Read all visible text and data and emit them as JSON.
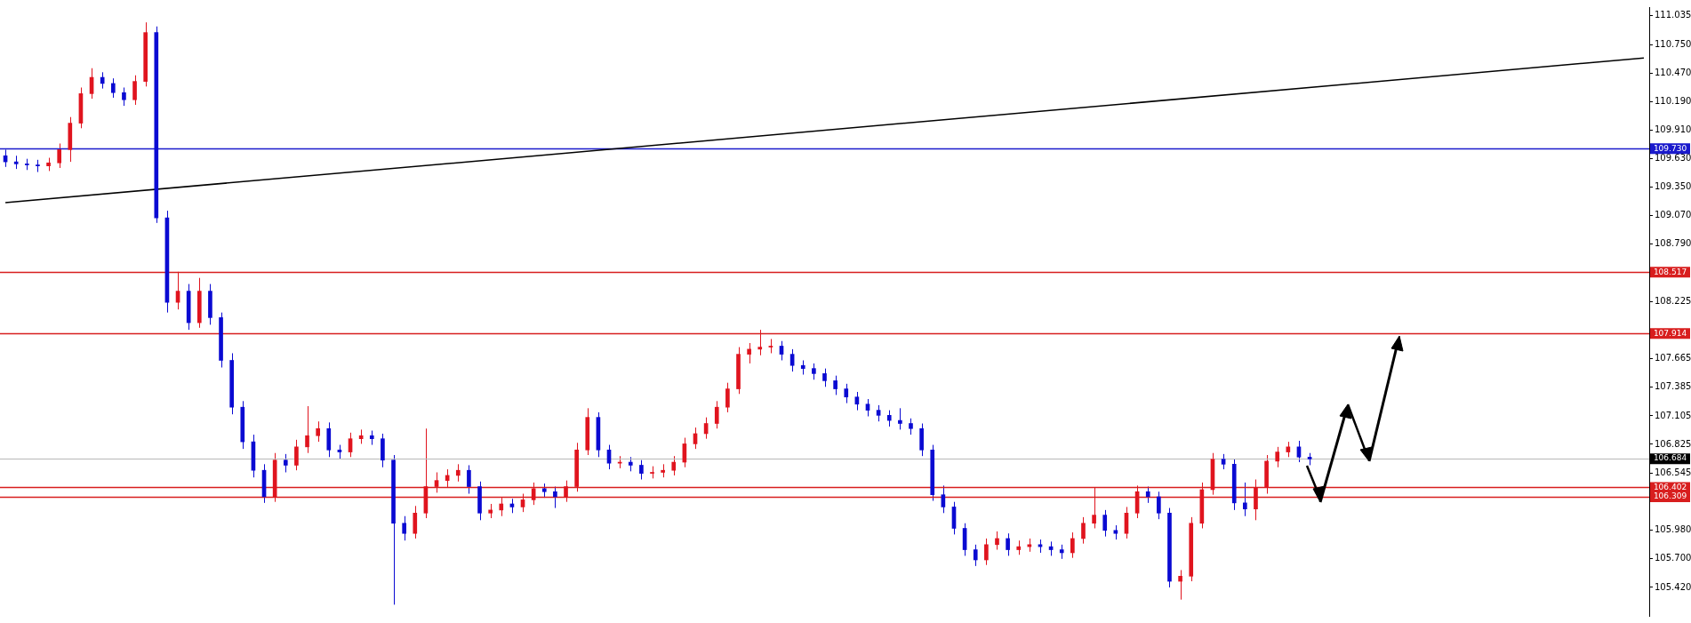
{
  "chart_data": {
    "type": "candlestick",
    "categories": [
      null,
      null,
      null,
      null,
      null,
      null,
      null,
      null,
      null,
      null,
      null,
      null,
      null,
      null,
      null,
      null,
      null,
      null,
      null,
      null,
      null,
      null,
      null,
      null,
      null,
      null,
      null,
      null,
      null,
      null,
      null,
      null,
      null,
      null,
      null,
      null,
      null,
      null,
      null,
      null,
      null,
      null,
      null,
      null,
      null,
      null,
      null,
      null,
      null,
      null,
      null,
      null,
      null,
      null,
      null,
      null,
      null,
      null,
      null,
      null,
      null,
      null,
      null,
      null,
      null,
      null,
      null,
      null,
      null,
      null,
      null,
      null,
      null,
      null,
      null,
      null,
      null,
      null,
      null,
      null,
      null,
      null,
      null,
      null,
      null,
      null,
      null,
      null,
      null,
      null,
      null,
      null,
      null,
      null,
      null,
      null,
      null,
      null,
      null,
      null,
      null,
      null,
      null,
      null,
      null,
      null,
      null,
      null,
      null,
      null,
      null,
      null,
      null,
      null,
      null,
      null,
      null,
      null,
      null,
      null,
      null,
      null,
      null,
      null,
      null,
      null,
      null,
      null,
      null,
      null,
      null,
      null,
      null,
      null,
      null,
      null,
      null,
      null,
      null,
      null,
      null,
      null,
      null,
      null,
      null,
      null,
      null,
      null,
      null,
      null,
      null,
      null,
      null
    ],
    "series": [
      {
        "type": "candlestick",
        "ohlc": [
          [
            109.66,
            109.72,
            109.55,
            109.6
          ],
          [
            109.6,
            109.66,
            109.53,
            109.58
          ],
          [
            109.58,
            109.63,
            109.52,
            109.57
          ],
          [
            109.57,
            109.62,
            109.5,
            109.56
          ],
          [
            109.56,
            109.64,
            109.51,
            109.59
          ],
          [
            109.59,
            109.78,
            109.54,
            109.72
          ],
          [
            109.72,
            110.04,
            109.6,
            109.98
          ],
          [
            109.98,
            110.33,
            109.93,
            110.27
          ],
          [
            110.27,
            110.52,
            110.22,
            110.43
          ],
          [
            110.43,
            110.48,
            110.32,
            110.37
          ],
          [
            110.37,
            110.42,
            110.23,
            110.28
          ],
          [
            110.28,
            110.33,
            110.15,
            110.21
          ],
          [
            110.21,
            110.45,
            110.16,
            110.39
          ],
          [
            110.39,
            110.97,
            110.34,
            110.87
          ],
          [
            110.87,
            110.93,
            109.0,
            109.05
          ],
          [
            109.05,
            109.12,
            108.12,
            108.22
          ],
          [
            108.22,
            108.52,
            108.15,
            108.33
          ],
          [
            108.33,
            108.4,
            107.95,
            108.02
          ],
          [
            108.02,
            108.46,
            107.97,
            108.33
          ],
          [
            108.33,
            108.4,
            108.0,
            108.07
          ],
          [
            108.07,
            108.12,
            107.58,
            107.65
          ],
          [
            107.65,
            107.72,
            107.12,
            107.19
          ],
          [
            107.19,
            107.25,
            106.78,
            106.85
          ],
          [
            106.85,
            106.92,
            106.5,
            106.57
          ],
          [
            106.57,
            106.63,
            106.25,
            106.31
          ],
          [
            106.31,
            106.74,
            106.26,
            106.67
          ],
          [
            106.67,
            106.73,
            106.55,
            106.62
          ],
          [
            106.62,
            106.87,
            106.57,
            106.8
          ],
          [
            106.8,
            107.2,
            106.74,
            106.91
          ],
          [
            106.91,
            107.05,
            106.85,
            106.98
          ],
          [
            106.98,
            107.04,
            106.7,
            106.77
          ],
          [
            106.77,
            106.82,
            106.68,
            106.75
          ],
          [
            106.75,
            106.94,
            106.7,
            106.88
          ],
          [
            106.88,
            106.97,
            106.83,
            106.91
          ],
          [
            106.91,
            106.96,
            106.82,
            106.88
          ],
          [
            106.88,
            106.93,
            106.6,
            106.67
          ],
          [
            106.67,
            106.72,
            105.25,
            106.05
          ],
          [
            106.05,
            106.12,
            105.88,
            105.95
          ],
          [
            105.95,
            106.22,
            105.9,
            106.15
          ],
          [
            106.15,
            106.98,
            106.1,
            106.41
          ],
          [
            106.41,
            106.55,
            106.35,
            106.47
          ],
          [
            106.47,
            106.58,
            106.4,
            106.52
          ],
          [
            106.52,
            106.63,
            106.46,
            106.57
          ],
          [
            106.57,
            106.62,
            106.34,
            106.41
          ],
          [
            106.41,
            106.46,
            106.08,
            106.15
          ],
          [
            106.15,
            106.24,
            106.1,
            106.18
          ],
          [
            106.18,
            106.3,
            106.12,
            106.24
          ],
          [
            106.24,
            106.29,
            106.15,
            106.21
          ],
          [
            106.21,
            106.34,
            106.16,
            106.28
          ],
          [
            106.28,
            106.45,
            106.23,
            106.39
          ],
          [
            106.39,
            106.44,
            106.3,
            106.36
          ],
          [
            106.36,
            106.41,
            106.2,
            106.31
          ],
          [
            106.31,
            106.47,
            106.26,
            106.41
          ],
          [
            106.41,
            106.84,
            106.36,
            106.77
          ],
          [
            106.77,
            107.18,
            106.72,
            107.09
          ],
          [
            107.09,
            107.14,
            106.7,
            106.77
          ],
          [
            106.77,
            106.82,
            106.58,
            106.64
          ],
          [
            106.64,
            106.71,
            106.59,
            106.65
          ],
          [
            106.65,
            106.7,
            106.56,
            106.62
          ],
          [
            106.62,
            106.67,
            106.48,
            106.54
          ],
          [
            106.54,
            106.61,
            106.49,
            106.55
          ],
          [
            106.55,
            106.63,
            106.5,
            106.57
          ],
          [
            106.57,
            106.71,
            106.52,
            106.65
          ],
          [
            106.65,
            106.89,
            106.6,
            106.83
          ],
          [
            106.83,
            106.99,
            106.78,
            106.93
          ],
          [
            106.93,
            107.09,
            106.88,
            107.03
          ],
          [
            107.03,
            107.25,
            106.98,
            107.19
          ],
          [
            107.19,
            107.43,
            107.14,
            107.37
          ],
          [
            107.37,
            107.78,
            107.32,
            107.71
          ],
          [
            107.71,
            107.82,
            107.62,
            107.76
          ],
          [
            107.76,
            107.95,
            107.7,
            107.78
          ],
          [
            107.78,
            107.86,
            107.72,
            107.79
          ],
          [
            107.79,
            107.84,
            107.65,
            107.71
          ],
          [
            107.71,
            107.76,
            107.54,
            107.6
          ],
          [
            107.6,
            107.65,
            107.51,
            107.57
          ],
          [
            107.57,
            107.62,
            107.46,
            107.52
          ],
          [
            107.52,
            107.57,
            107.39,
            107.45
          ],
          [
            107.45,
            107.5,
            107.31,
            107.37
          ],
          [
            107.37,
            107.42,
            107.23,
            107.29
          ],
          [
            107.29,
            107.34,
            107.16,
            107.22
          ],
          [
            107.22,
            107.27,
            107.1,
            107.16
          ],
          [
            107.16,
            107.21,
            107.05,
            107.11
          ],
          [
            107.11,
            107.16,
            107.0,
            107.06
          ],
          [
            107.06,
            107.18,
            106.97,
            107.03
          ],
          [
            107.03,
            107.08,
            106.92,
            106.98
          ],
          [
            106.98,
            107.03,
            106.71,
            106.77
          ],
          [
            106.77,
            106.82,
            106.27,
            106.33
          ],
          [
            106.33,
            106.42,
            106.15,
            106.21
          ],
          [
            106.21,
            106.26,
            105.94,
            106.0
          ],
          [
            106.0,
            106.05,
            105.73,
            105.79
          ],
          [
            105.79,
            105.84,
            105.63,
            105.69
          ],
          [
            105.69,
            105.9,
            105.64,
            105.84
          ],
          [
            105.84,
            105.97,
            105.79,
            105.9
          ],
          [
            105.9,
            105.95,
            105.73,
            105.79
          ],
          [
            105.79,
            105.88,
            105.74,
            105.82
          ],
          [
            105.82,
            105.9,
            105.77,
            105.84
          ],
          [
            105.84,
            105.89,
            105.76,
            105.82
          ],
          [
            105.82,
            105.87,
            105.73,
            105.79
          ],
          [
            105.79,
            105.84,
            105.7,
            105.76
          ],
          [
            105.76,
            105.96,
            105.71,
            105.9
          ],
          [
            105.9,
            106.11,
            105.85,
            106.05
          ],
          [
            106.05,
            106.4,
            106.0,
            106.13
          ],
          [
            106.13,
            106.18,
            105.92,
            105.98
          ],
          [
            105.98,
            106.03,
            105.89,
            105.95
          ],
          [
            105.95,
            106.21,
            105.9,
            106.15
          ],
          [
            106.15,
            106.42,
            106.1,
            106.36
          ],
          [
            106.36,
            106.41,
            106.25,
            106.31
          ],
          [
            106.31,
            106.36,
            106.09,
            106.15
          ],
          [
            106.15,
            106.2,
            105.42,
            105.48
          ],
          [
            105.48,
            105.59,
            105.3,
            105.53
          ],
          [
            105.53,
            106.11,
            105.48,
            106.05
          ],
          [
            106.05,
            106.45,
            106.0,
            106.38
          ],
          [
            106.38,
            106.74,
            106.33,
            106.68
          ],
          [
            106.68,
            106.73,
            106.58,
            106.63
          ],
          [
            106.63,
            106.68,
            106.18,
            106.25
          ],
          [
            106.25,
            106.45,
            106.12,
            106.19
          ],
          [
            106.19,
            106.48,
            106.08,
            106.4
          ],
          [
            106.4,
            106.72,
            106.34,
            106.66
          ],
          [
            106.66,
            106.8,
            106.6,
            106.75
          ],
          [
            106.75,
            106.85,
            106.7,
            106.8
          ],
          [
            106.8,
            106.86,
            106.65,
            106.7
          ],
          [
            106.7,
            106.74,
            106.62,
            106.68
          ],
          null,
          null,
          null,
          null,
          null,
          null,
          null,
          null,
          null,
          null,
          null,
          null,
          null,
          null,
          null,
          null,
          null,
          null,
          null,
          null,
          null,
          null,
          null,
          null,
          null,
          null,
          null,
          null,
          null,
          null,
          null
        ],
        "colors": [
          "#0a0ad2",
          "#0a0ad2",
          "#0a0ad2",
          "#0a0ad2",
          "#e0141e",
          "#e0141e",
          "#e0141e",
          "#e0141e",
          "#e0141e",
          "#0a0ad2",
          "#0a0ad2",
          "#0a0ad2",
          "#e0141e",
          "#e0141e",
          "#0a0ad2",
          "#0a0ad2",
          "#e0141e",
          "#0a0ad2",
          "#e0141e",
          "#0a0ad2",
          "#0a0ad2",
          "#0a0ad2",
          "#0a0ad2",
          "#0a0ad2",
          "#0a0ad2",
          "#e0141e",
          "#0a0ad2",
          "#e0141e",
          "#e0141e",
          "#e0141e",
          "#0a0ad2",
          "#0a0ad2",
          "#e0141e",
          "#e0141e",
          "#0a0ad2",
          "#0a0ad2",
          "#0a0ad2",
          "#0a0ad2",
          "#e0141e",
          "#e0141e",
          "#e0141e",
          "#e0141e",
          "#e0141e",
          "#0a0ad2",
          "#0a0ad2",
          "#e0141e",
          "#e0141e",
          "#0a0ad2",
          "#e0141e",
          "#e0141e",
          "#0a0ad2",
          "#0a0ad2",
          "#e0141e",
          "#e0141e",
          "#e0141e",
          "#0a0ad2",
          "#0a0ad2",
          "#e0141e",
          "#0a0ad2",
          "#0a0ad2",
          "#e0141e",
          "#e0141e",
          "#e0141e",
          "#e0141e",
          "#e0141e",
          "#e0141e",
          "#e0141e",
          "#e0141e",
          "#e0141e",
          "#e0141e",
          "#e0141e",
          "#e0141e",
          "#0a0ad2",
          "#0a0ad2",
          "#0a0ad2",
          "#0a0ad2",
          "#0a0ad2",
          "#0a0ad2",
          "#0a0ad2",
          "#0a0ad2",
          "#0a0ad2",
          "#0a0ad2",
          "#0a0ad2",
          "#0a0ad2",
          "#0a0ad2",
          "#0a0ad2",
          "#0a0ad2",
          "#0a0ad2",
          "#0a0ad2",
          "#0a0ad2",
          "#0a0ad2",
          "#e0141e",
          "#e0141e",
          "#0a0ad2",
          "#e0141e",
          "#e0141e",
          "#0a0ad2",
          "#0a0ad2",
          "#0a0ad2",
          "#e0141e",
          "#e0141e",
          "#e0141e",
          "#0a0ad2",
          "#0a0ad2",
          "#e0141e",
          "#e0141e",
          "#0a0ad2",
          "#0a0ad2",
          "#0a0ad2",
          "#e0141e",
          "#e0141e",
          "#e0141e",
          "#e0141e",
          "#0a0ad2",
          "#0a0ad2",
          "#0a0ad2",
          "#e0141e",
          "#e0141e",
          "#e0141e",
          "#e0141e",
          "#0a0ad2",
          "#0a0ad2",
          null,
          null,
          null,
          null,
          null,
          null,
          null,
          null,
          null,
          null,
          null,
          null,
          null,
          null,
          null,
          null,
          null,
          null,
          null,
          null,
          null,
          null,
          null,
          null,
          null,
          null,
          null,
          null,
          null,
          null,
          null
        ]
      },
      {
        "type": "line",
        "color": "#000000",
        "values": [
          109.2,
          null,
          null,
          null,
          null,
          null,
          null,
          null,
          null,
          null,
          null,
          null,
          null,
          null,
          null,
          null,
          null,
          null,
          null,
          null,
          null,
          null,
          null,
          null,
          null,
          null,
          null,
          null,
          null,
          null,
          null,
          null,
          null,
          null,
          null,
          null,
          null,
          null,
          null,
          null,
          null,
          null,
          null,
          null,
          null,
          null,
          null,
          null,
          null,
          null,
          null,
          null,
          null,
          null,
          null,
          null,
          null,
          null,
          null,
          null,
          null,
          null,
          null,
          null,
          null,
          null,
          null,
          null,
          null,
          null,
          null,
          null,
          null,
          null,
          null,
          null,
          null,
          null,
          null,
          null,
          null,
          null,
          null,
          null,
          null,
          null,
          null,
          null,
          null,
          null,
          null,
          null,
          null,
          null,
          null,
          null,
          null,
          null,
          null,
          null,
          null,
          null,
          null,
          null,
          null,
          null,
          null,
          null,
          null,
          null,
          null,
          null,
          null,
          null,
          null,
          null,
          null,
          null,
          null,
          null,
          null,
          null,
          null,
          null,
          null,
          null,
          null,
          null,
          null,
          null,
          null,
          null,
          null,
          null,
          null,
          null,
          null,
          null,
          null,
          null,
          null,
          null,
          null,
          null,
          null,
          null,
          null,
          null,
          null,
          null,
          null,
          null,
          110.62
        ]
      }
    ],
    "ylim": [
      105.14,
      111.12
    ],
    "yticks": [
      {
        "value": 111.035,
        "label": "111.035"
      },
      {
        "value": 110.75,
        "label": "110.750"
      },
      {
        "value": 110.47,
        "label": "110.470"
      },
      {
        "value": 110.19,
        "label": "110.190"
      },
      {
        "value": 109.91,
        "label": "109.910"
      },
      {
        "value": 109.63,
        "label": "109.630"
      },
      {
        "value": 109.35,
        "label": "109.350"
      },
      {
        "value": 109.07,
        "label": "109.070"
      },
      {
        "value": 108.79,
        "label": "108.790"
      },
      {
        "value": 108.225,
        "label": "108.225"
      },
      {
        "value": 107.665,
        "label": "107.665"
      },
      {
        "value": 107.385,
        "label": "107.385"
      },
      {
        "value": 107.105,
        "label": "107.105"
      },
      {
        "value": 106.825,
        "label": "106.825"
      },
      {
        "value": 106.545,
        "label": "106.545"
      },
      {
        "value": 105.98,
        "label": "105.980"
      },
      {
        "value": 105.7,
        "label": "105.700"
      },
      {
        "value": 105.42,
        "label": "105.420"
      }
    ],
    "ref_lines": [
      {
        "axis": "y",
        "value": 109.73,
        "label": "109.730",
        "color": "#1a1acc"
      },
      {
        "axis": "y",
        "value": 108.517,
        "label": "108.517",
        "color": "#d81e1e"
      },
      {
        "axis": "y",
        "value": 107.914,
        "label": "107.914",
        "color": "#d81e1e"
      },
      {
        "axis": "y",
        "value": 106.684,
        "label": "106.684",
        "color": "#b8b8b8"
      },
      {
        "axis": "y",
        "value": 106.402,
        "label": "106.402",
        "color": "#d81e1e"
      },
      {
        "axis": "y",
        "value": 106.309,
        "label": "106.309",
        "color": "#d81e1e"
      }
    ]
  }
}
